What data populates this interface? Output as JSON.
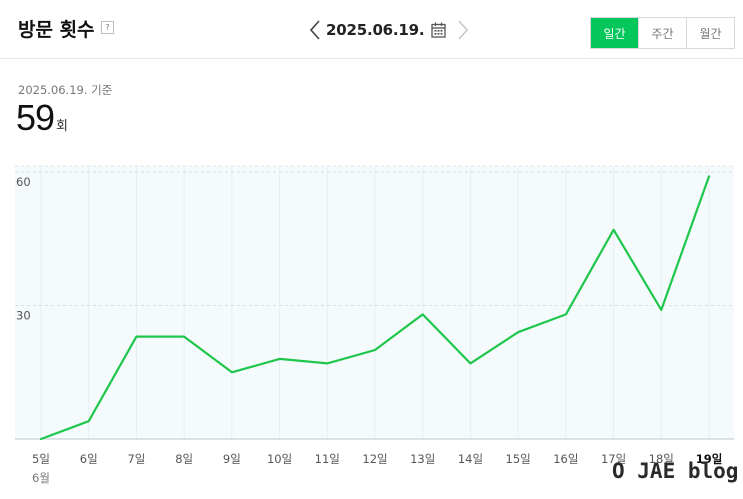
{
  "header": {
    "title": "방문 횟수",
    "help_icon": "?",
    "date": "2025.06.19.",
    "tabs": [
      {
        "label": "일간",
        "active": true
      },
      {
        "label": "주간",
        "active": false
      },
      {
        "label": "월간",
        "active": false
      }
    ]
  },
  "summary": {
    "basis": "2025.06.19. 기준",
    "count": "59",
    "unit": "회"
  },
  "colors": {
    "accent": "#03c75a",
    "line": "#1ec74b",
    "plot_bg": "#f5fafd"
  },
  "chart_data": {
    "type": "line",
    "categories": [
      "5일",
      "6일",
      "7일",
      "8일",
      "9일",
      "10일",
      "11일",
      "12일",
      "13일",
      "14일",
      "15일",
      "16일",
      "17일",
      "18일",
      "19일"
    ],
    "month_label": "6월",
    "values": [
      0,
      4,
      23,
      23,
      15,
      18,
      17,
      20,
      28,
      17,
      24,
      28,
      47,
      29,
      59
    ],
    "y_ticks": [
      30,
      60
    ],
    "ylim": [
      0,
      60
    ],
    "grid": true,
    "highlight_category": "19일"
  },
  "watermark": "O JAE blog"
}
